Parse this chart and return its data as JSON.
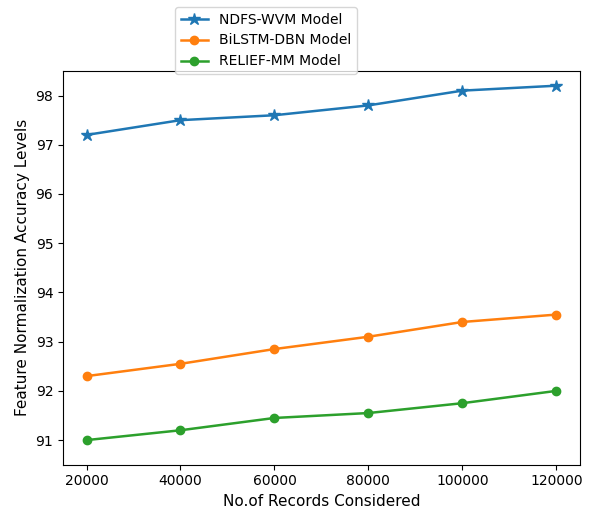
{
  "x": [
    20000,
    40000,
    60000,
    80000,
    100000,
    120000
  ],
  "ndfs_wvm": [
    97.2,
    97.5,
    97.6,
    97.8,
    98.1,
    98.2
  ],
  "bilstm_dbn": [
    92.3,
    92.55,
    92.85,
    93.1,
    93.4,
    93.55
  ],
  "relief_mm": [
    91.0,
    91.2,
    91.45,
    91.55,
    91.75,
    92.0
  ],
  "ndfs_color": "#1f77b4",
  "bilstm_color": "#ff7f0e",
  "relief_color": "#2ca02c",
  "ndfs_label": "NDFS-WVM Model",
  "bilstm_label": "BiLSTM-DBN Model",
  "relief_label": "RELIEF-MM Model",
  "xlabel": "No.of Records Considered",
  "ylabel": "Feature Normalization Accuracy Levels",
  "xlim": [
    15000,
    125000
  ],
  "ylim": [
    90.5,
    98.5
  ],
  "yticks": [
    91,
    92,
    93,
    94,
    95,
    96,
    97,
    98
  ],
  "xticks": [
    20000,
    40000,
    60000,
    80000,
    100000,
    120000
  ],
  "figsize": [
    6.0,
    5.24
  ],
  "dpi": 100,
  "linewidth": 1.8,
  "markersize": 6
}
